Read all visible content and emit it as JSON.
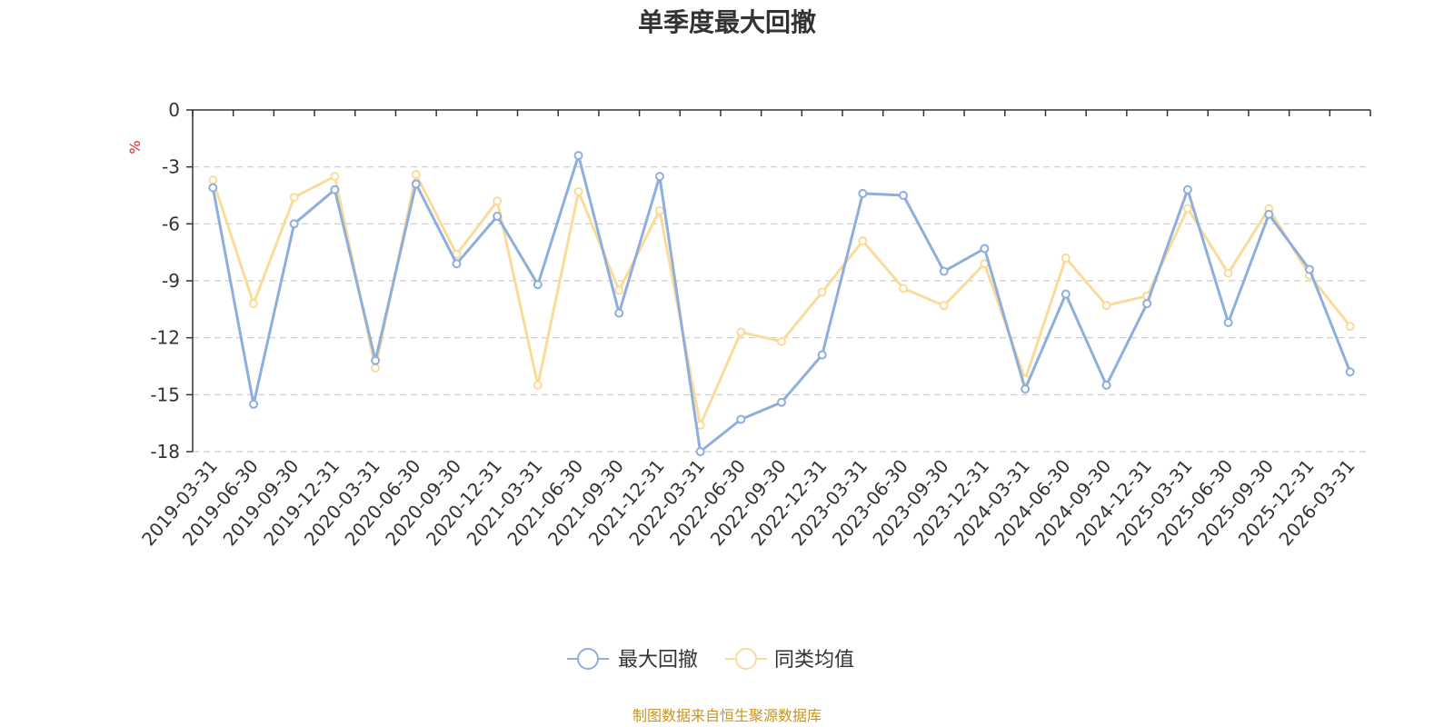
{
  "chart_data": {
    "type": "line",
    "title": "单季度最大回撤",
    "ylabel": "%",
    "ylim": [
      -18,
      0
    ],
    "yticks": [
      0,
      -3,
      -6,
      -9,
      -12,
      -15,
      -18
    ],
    "grid": true,
    "legend_position": "bottom-center",
    "categories": [
      "2019-03-31",
      "2019-06-30",
      "2019-09-30",
      "2019-12-31",
      "2020-03-31",
      "2020-06-30",
      "2020-09-30",
      "2020-12-31",
      "2021-03-31",
      "2021-06-30",
      "2021-09-30",
      "2021-12-31",
      "2022-03-31",
      "2022-06-30",
      "2022-09-30",
      "2022-12-31",
      "2023-03-31",
      "2023-06-30",
      "2023-09-30",
      "2023-12-31",
      "2024-03-31",
      "2024-06-30",
      "2024-09-30",
      "2024-12-31",
      "2025-03-31",
      "2025-06-30",
      "2025-09-30",
      "2025-12-31",
      "2026-03-31"
    ],
    "series": [
      {
        "name": "最大回撤",
        "color": "#8eaedc",
        "values": [
          -4.1,
          -15.5,
          -6.0,
          -4.2,
          -13.2,
          -3.9,
          -8.1,
          -5.6,
          -9.2,
          -2.4,
          -10.7,
          -3.5,
          -18.0,
          -16.3,
          -15.4,
          -12.9,
          -4.4,
          -4.5,
          -8.5,
          -7.3,
          -14.7,
          -9.7,
          -14.5,
          -10.2,
          -4.2,
          -11.2,
          -5.5,
          -8.4,
          -13.8
        ]
      },
      {
        "name": "同类均值",
        "color": "#fadb9a",
        "values": [
          -3.7,
          -10.2,
          -4.6,
          -3.5,
          -13.6,
          -3.4,
          -7.6,
          -4.8,
          -14.5,
          -4.3,
          -9.5,
          -5.3,
          -16.6,
          -11.7,
          -12.2,
          -9.6,
          -6.9,
          -9.4,
          -10.3,
          -8.1,
          -14.2,
          -7.8,
          -10.3,
          -9.8,
          -5.2,
          -8.6,
          -5.2,
          -8.7,
          -11.4
        ]
      }
    ]
  },
  "footer": {
    "source": "制图数据来自恒生聚源数据库"
  }
}
